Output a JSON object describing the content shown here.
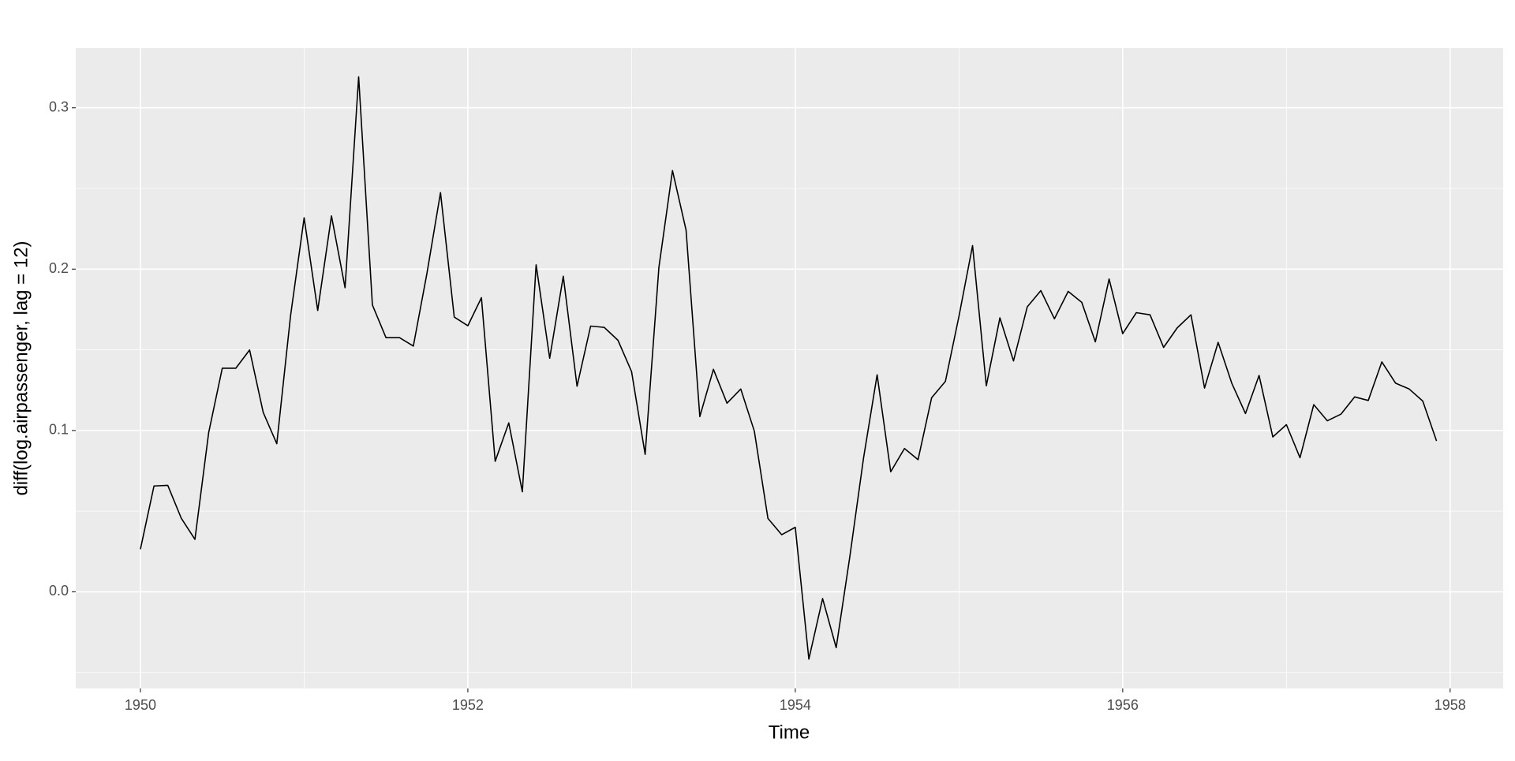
{
  "chart_data": {
    "type": "line",
    "xlabel": "Time",
    "ylabel": "diff(log.airpassenger, lag = 12)",
    "x": [
      1950,
      1950.083,
      1950.167,
      1950.25,
      1950.333,
      1950.417,
      1950.5,
      1950.583,
      1950.667,
      1950.75,
      1950.833,
      1950.917,
      1951,
      1951.083,
      1951.167,
      1951.25,
      1951.333,
      1951.417,
      1951.5,
      1951.583,
      1951.667,
      1951.75,
      1951.833,
      1951.917,
      1952,
      1952.083,
      1952.167,
      1952.25,
      1952.333,
      1952.417,
      1952.5,
      1952.583,
      1952.667,
      1952.75,
      1952.833,
      1952.917,
      1953,
      1953.083,
      1953.167,
      1953.25,
      1953.333,
      1953.417,
      1953.5,
      1953.583,
      1953.667,
      1953.75,
      1953.833,
      1953.917,
      1954,
      1954.083,
      1954.167,
      1954.25,
      1954.333,
      1954.417,
      1954.5,
      1954.583,
      1954.667,
      1954.75,
      1954.833,
      1954.917,
      1955,
      1955.083,
      1955.167,
      1955.25,
      1955.333,
      1955.417,
      1955.5,
      1955.583,
      1955.667,
      1955.75,
      1955.833,
      1955.917,
      1956,
      1956.083,
      1956.167,
      1956.25,
      1956.333,
      1956.417,
      1956.5,
      1956.583,
      1956.667,
      1956.75,
      1956.833,
      1956.917,
      1957,
      1957.083,
      1957.167,
      1957.25,
      1957.333,
      1957.417,
      1957.5,
      1957.583,
      1957.667,
      1957.75,
      1957.833,
      1957.917
    ],
    "series": [
      {
        "color": "#000000",
        "values": [
          0.0264,
          0.0656,
          0.066,
          0.0455,
          0.0325,
          0.0987,
          0.1386,
          0.1386,
          0.1499,
          0.1112,
          0.0918,
          0.171,
          0.2318,
          0.1744,
          0.233,
          0.1885,
          0.3192,
          0.1778,
          0.1575,
          0.1575,
          0.1523,
          0.1973,
          0.2474,
          0.1703,
          0.1649,
          0.1823,
          0.0809,
          0.1047,
          0.062,
          0.2027,
          0.1448,
          0.1956,
          0.1274,
          0.1647,
          0.1639,
          0.1559,
          0.1365,
          0.0852,
          0.2011,
          0.2611,
          0.2242,
          0.1086,
          0.1379,
          0.1169,
          0.1257,
          0.0996,
          0.0455,
          0.0354,
          0.04,
          -0.0417,
          -0.0042,
          -0.0346,
          0.0216,
          0.0829,
          0.1345,
          0.0744,
          0.0888,
          0.0819,
          0.1203,
          0.1304,
          0.1708,
          0.2146,
          0.1277,
          0.1698,
          0.1431,
          0.1766,
          0.1867,
          0.1692,
          0.1862,
          0.1794,
          0.1549,
          0.1939,
          0.16,
          0.173,
          0.1717,
          0.1515,
          0.1636,
          0.1717,
          0.1263,
          0.1546,
          0.1291,
          0.1105,
          0.1341,
          0.096,
          0.1036,
          0.0831,
          0.116,
          0.106,
          0.1101,
          0.1208,
          0.1186,
          0.1425,
          0.1293,
          0.1257,
          0.1182,
          0.0935
        ]
      }
    ],
    "xlim": [
      1949.605,
      1958.324
    ],
    "ylim": [
      -0.0599,
      0.337
    ],
    "xticks": [
      1950,
      1952,
      1954,
      1956,
      1958
    ],
    "yticks": [
      {
        "value": 0,
        "label": "0.0"
      },
      0.1,
      0.2,
      0.3
    ],
    "grid": true,
    "panel_color": "#ebebeb"
  }
}
